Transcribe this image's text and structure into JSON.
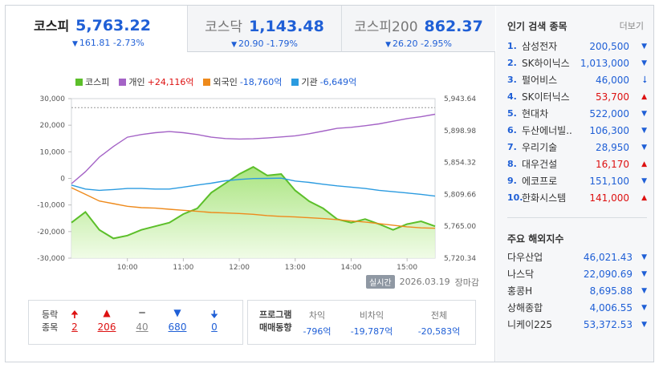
{
  "tabs": [
    {
      "name": "코스피",
      "value": "5,763.22",
      "change": "161.81",
      "rate": "-2.73%",
      "arrow": "▼"
    },
    {
      "name": "코스닥",
      "value": "1,143.48",
      "change": "20.90",
      "rate": "-1.79%",
      "arrow": "▼"
    },
    {
      "name": "코스피200",
      "value": "862.37",
      "change": "26.20",
      "rate": "-2.95%",
      "arrow": "▼"
    }
  ],
  "legend": [
    {
      "label": "코스피",
      "value": "",
      "color": "#5cbf2a"
    },
    {
      "label": "개인",
      "value": "+24,116억",
      "color": "#a463c6"
    },
    {
      "label": "외국인",
      "value": "-18,760억",
      "color": "#ee8a1c"
    },
    {
      "label": "기관",
      "value": "-6,649억",
      "color": "#2b9be0"
    }
  ],
  "chart_data": {
    "type": "line",
    "title": "",
    "y_left_ticks": [
      "30,000",
      "20,000",
      "10,000",
      "0",
      "-10,000",
      "-20,000",
      "-30,000"
    ],
    "y_right_ticks": [
      "5,943.64",
      "5,898.98",
      "5,854.32",
      "5,809.66",
      "5,765.00",
      "5,720.34"
    ],
    "x_ticks": [
      "10:00",
      "11:00",
      "12:00",
      "13:00",
      "14:00",
      "15:00"
    ],
    "y_left_range": [
      -30000,
      30000
    ],
    "y_right_range": [
      5720.34,
      5943.64
    ],
    "prev_close_level": 5931.0,
    "x_hours": [
      9.0,
      9.25,
      9.5,
      9.75,
      10.0,
      10.25,
      10.5,
      10.75,
      11.0,
      11.25,
      11.5,
      11.75,
      12.0,
      12.25,
      12.5,
      12.75,
      13.0,
      13.25,
      13.5,
      13.75,
      14.0,
      14.25,
      14.5,
      14.75,
      15.0,
      15.25,
      15.5
    ],
    "series": [
      {
        "name": "코스피",
        "axis": "right",
        "color": "#5cbf2a",
        "values": [
          5770,
          5785,
          5760,
          5748,
          5752,
          5760,
          5765,
          5770,
          5782,
          5790,
          5812,
          5825,
          5838,
          5848,
          5836,
          5838,
          5815,
          5800,
          5790,
          5775,
          5770,
          5775,
          5768,
          5760,
          5768,
          5772,
          5765
        ]
      },
      {
        "name": "개인",
        "axis": "left",
        "color": "#a463c6",
        "values": [
          -2000,
          2500,
          8000,
          12000,
          15500,
          16500,
          17200,
          17600,
          17200,
          16500,
          15500,
          15000,
          14800,
          14900,
          15200,
          15600,
          16000,
          16800,
          17800,
          18800,
          19200,
          19800,
          20500,
          21500,
          22500,
          23200,
          24116
        ]
      },
      {
        "name": "외국인",
        "axis": "left",
        "color": "#ee8a1c",
        "values": [
          -3500,
          -6000,
          -8500,
          -9500,
          -10500,
          -11000,
          -11200,
          -11600,
          -12000,
          -12400,
          -12800,
          -13000,
          -13200,
          -13500,
          -14000,
          -14300,
          -14500,
          -14800,
          -15100,
          -15500,
          -16000,
          -16400,
          -17000,
          -17600,
          -18200,
          -18600,
          -18760
        ]
      },
      {
        "name": "기관",
        "axis": "left",
        "color": "#2b9be0",
        "values": [
          -2500,
          -4000,
          -4500,
          -4200,
          -3800,
          -3800,
          -4000,
          -4000,
          -3300,
          -2500,
          -1800,
          -900,
          -400,
          -50,
          0,
          100,
          -1000,
          -1500,
          -2200,
          -2800,
          -3300,
          -3800,
          -4500,
          -5000,
          -5500,
          -6000,
          -6649
        ]
      }
    ]
  },
  "status": {
    "badge": "실시간",
    "date": "2026.03.19",
    "state": "장마감"
  },
  "breadth": {
    "label1": "등락",
    "label2": "종목",
    "items": [
      {
        "icon": "🠉",
        "count": "2",
        "cls": "red"
      },
      {
        "icon": "▲",
        "count": "206",
        "cls": "red"
      },
      {
        "icon": "━",
        "count": "40",
        "cls": "gray"
      },
      {
        "icon": "▼",
        "count": "680",
        "cls": "blue"
      },
      {
        "icon": "🠋",
        "count": "0",
        "cls": "blue"
      }
    ]
  },
  "program": {
    "label1": "프로그램",
    "label2": "매매동향",
    "cols": [
      {
        "h": "차익",
        "v": "-796억"
      },
      {
        "h": "비차익",
        "v": "-19,787억"
      },
      {
        "h": "전체",
        "v": "-20,583억"
      }
    ]
  },
  "popular": {
    "title": "인기 검색 종목",
    "more": "더보기",
    "items": [
      {
        "rank": "1.",
        "name": "삼성전자",
        "price": "200,500",
        "arrow": "▼",
        "dir": "down"
      },
      {
        "rank": "2.",
        "name": "SK하이닉스",
        "price": "1,013,000",
        "arrow": "▼",
        "dir": "down"
      },
      {
        "rank": "3.",
        "name": "펄어비스",
        "price": "46,000",
        "arrow": "⭣",
        "dir": "down"
      },
      {
        "rank": "4.",
        "name": "SK이터닉스",
        "price": "53,700",
        "arrow": "▲",
        "dir": "up"
      },
      {
        "rank": "5.",
        "name": "현대차",
        "price": "522,000",
        "arrow": "▼",
        "dir": "down"
      },
      {
        "rank": "6.",
        "name": "두산에너빌..",
        "price": "106,300",
        "arrow": "▼",
        "dir": "down"
      },
      {
        "rank": "7.",
        "name": "우리기술",
        "price": "28,950",
        "arrow": "▼",
        "dir": "down"
      },
      {
        "rank": "8.",
        "name": "대우건설",
        "price": "16,170",
        "arrow": "▲",
        "dir": "up"
      },
      {
        "rank": "9.",
        "name": "에코프로",
        "price": "151,100",
        "arrow": "▼",
        "dir": "down"
      },
      {
        "rank": "10.",
        "name": "한화시스템",
        "price": "141,000",
        "arrow": "▲",
        "dir": "up"
      }
    ]
  },
  "overseas": {
    "title": "주요 해외지수",
    "items": [
      {
        "name": "다우산업",
        "value": "46,021.43",
        "arrow": "▼"
      },
      {
        "name": "나스닥",
        "value": "22,090.69",
        "arrow": "▼"
      },
      {
        "name": "홍콩H",
        "value": "8,695.88",
        "arrow": "▼"
      },
      {
        "name": "상해종합",
        "value": "4,006.55",
        "arrow": "▼"
      },
      {
        "name": "니케이225",
        "value": "53,372.53",
        "arrow": "▼"
      }
    ]
  }
}
